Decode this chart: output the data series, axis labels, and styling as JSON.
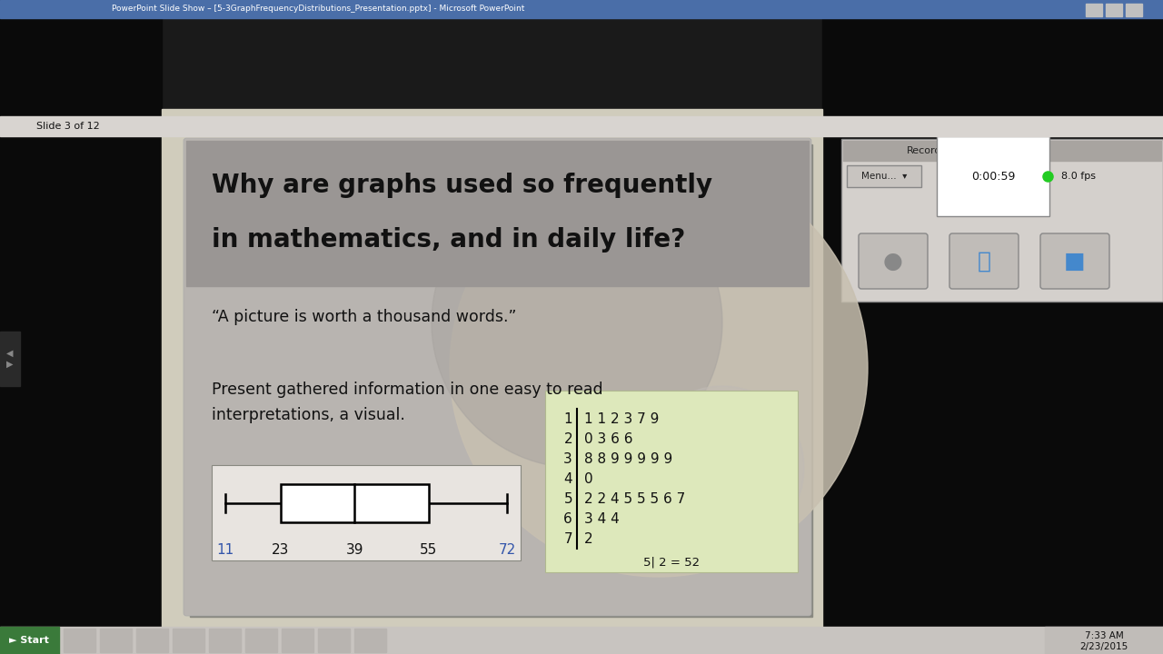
{
  "title_line1": "Why are graphs used so frequently",
  "title_line2": "in mathematics, and in daily life?",
  "quote": "“A picture is worth a thousand words.”",
  "body_line1": "Present gathered information in one easy to read",
  "body_line2": "interpretations, a visual.",
  "slide_bg": "#c8c4bc",
  "title_bg": "#9a9898",
  "body_color": "#111111",
  "title_color": "#111111",
  "boxplot_min": 11,
  "boxplot_q1": 23,
  "boxplot_median": 39,
  "boxplot_q3": 55,
  "boxplot_max": 72,
  "label_11_color": "#3355aa",
  "label_72_color": "#3355aa",
  "label_other_color": "#111111",
  "stem_bg": "#dde8bb",
  "stem_border": "#b0b890",
  "stem_rows": [
    {
      "stem": "1",
      "leaves": "1 1 2 3 7 9"
    },
    {
      "stem": "2",
      "leaves": "0 3 6 6"
    },
    {
      "stem": "3",
      "leaves": "8 8 9 9 9 9 9"
    },
    {
      "stem": "4",
      "leaves": "0"
    },
    {
      "stem": "5",
      "leaves": "2 2 4 5 5 5 6 7"
    },
    {
      "stem": "6",
      "leaves": "3 4 4"
    },
    {
      "stem": "7",
      "leaves": "2"
    }
  ],
  "stem_key": "5| 2 = 52",
  "window_title": "PowerPoint Slide Show – [5-3GraphFrequencyDistributions_Presentation.pptx] - Microsoft PowerPoint",
  "slide_number": "Slide 3 of 12",
  "outer_bg": "#1a1a1a",
  "ppt_frame_bg": "#d0ccbc",
  "circle1_color": "#b0aaa0",
  "circle2_color": "#c8b89a",
  "recording_bar_color": "#c0bdb8",
  "taskbar_color": "#d0ccc8"
}
